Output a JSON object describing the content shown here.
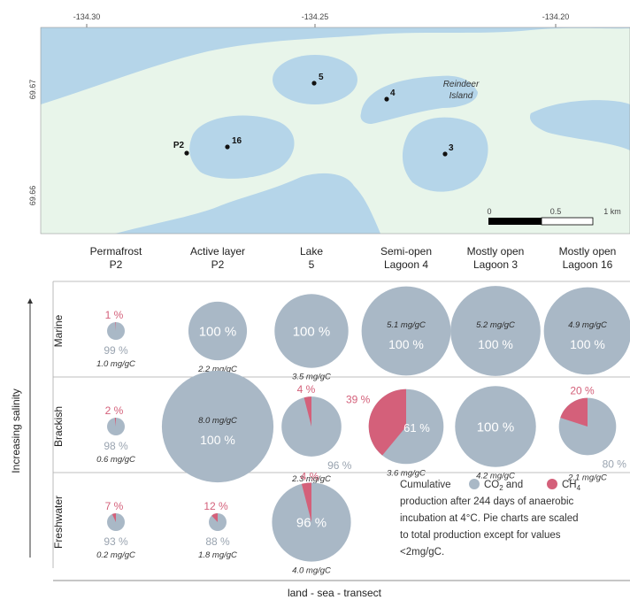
{
  "map": {
    "lon_ticks": [
      "-134.30",
      "-134.25",
      "-134.20"
    ],
    "lat_ticks": [
      "69.67",
      "69.66"
    ],
    "island_label": [
      "Reindeer",
      "Island"
    ],
    "sites": [
      "P2",
      "16",
      "5",
      "4",
      "3"
    ],
    "scale_labels": [
      "0",
      "0.5",
      "1 km"
    ]
  },
  "chart_data": {
    "type": "pie",
    "columns": [
      [
        "Permafrost",
        "P2"
      ],
      [
        "Active layer",
        "P2"
      ],
      [
        "Lake",
        "5"
      ],
      [
        "Semi-open",
        "Lagoon 4"
      ],
      [
        "Mostly open",
        "Lagoon 3"
      ],
      [
        "Mostly open",
        "Lagoon 16"
      ]
    ],
    "rows": [
      "Marine",
      "Brackish",
      "Freshwater"
    ],
    "y_axis_label": "Increasing salinity",
    "x_axis_label": "land - sea - transect",
    "cells": [
      {
        "row": 0,
        "col": 0,
        "total": 1.0,
        "total_label": "1.0 mg/gC",
        "co2": 99,
        "ch4": 1,
        "co2_label": "99 %",
        "ch4_label": "1 %",
        "style": "small"
      },
      {
        "row": 0,
        "col": 1,
        "total": 2.2,
        "total_label": "2.2 mg/gC",
        "co2": 100,
        "ch4": 0,
        "co2_label": "100 %",
        "ch4_label": "",
        "style": "inner"
      },
      {
        "row": 0,
        "col": 2,
        "total": 3.5,
        "total_label": "3.5 mg/gC",
        "co2": 100,
        "ch4": 0,
        "co2_label": "100 %",
        "ch4_label": "",
        "style": "inner"
      },
      {
        "row": 0,
        "col": 3,
        "total": 5.1,
        "total_label": "5.1 mg/gC",
        "co2": 100,
        "ch4": 0,
        "co2_label": "100 %",
        "ch4_label": "",
        "style": "big"
      },
      {
        "row": 0,
        "col": 4,
        "total": 5.2,
        "total_label": "5.2 mg/gC",
        "co2": 100,
        "ch4": 0,
        "co2_label": "100 %",
        "ch4_label": "",
        "style": "big"
      },
      {
        "row": 0,
        "col": 5,
        "total": 4.9,
        "total_label": "4.9 mg/gC",
        "co2": 100,
        "ch4": 0,
        "co2_label": "100 %",
        "ch4_label": "",
        "style": "big"
      },
      {
        "row": 1,
        "col": 0,
        "total": 0.6,
        "total_label": "0.6 mg/gC",
        "co2": 98,
        "ch4": 2,
        "co2_label": "98 %",
        "ch4_label": "2 %",
        "style": "small"
      },
      {
        "row": 1,
        "col": 1,
        "total": 8.0,
        "total_label": "8.0 mg/gC",
        "co2": 100,
        "ch4": 0,
        "co2_label": "100 %",
        "ch4_label": "",
        "style": "big"
      },
      {
        "row": 1,
        "col": 2,
        "total": 2.3,
        "total_label": "2.3 mg/gC",
        "co2": 96,
        "ch4": 4,
        "co2_label": "96 %",
        "ch4_label": "4 %",
        "style": "outside"
      },
      {
        "row": 1,
        "col": 3,
        "total": 3.6,
        "total_label": "3.6 mg/gC",
        "co2": 61,
        "ch4": 39,
        "co2_label": "61 %",
        "ch4_label": "39 %",
        "style": "split"
      },
      {
        "row": 1,
        "col": 4,
        "total": 4.2,
        "total_label": "4.2 mg/gC",
        "co2": 100,
        "ch4": 0,
        "co2_label": "100 %",
        "ch4_label": "",
        "style": "inner"
      },
      {
        "row": 1,
        "col": 5,
        "total": 2.1,
        "total_label": "2.1 mg/gC",
        "co2": 80,
        "ch4": 20,
        "co2_label": "80 %",
        "ch4_label": "20 %",
        "style": "outside"
      },
      {
        "row": 2,
        "col": 0,
        "total": 0.2,
        "total_label": "0.2 mg/gC",
        "co2": 93,
        "ch4": 7,
        "co2_label": "93 %",
        "ch4_label": "7 %",
        "style": "small"
      },
      {
        "row": 2,
        "col": 1,
        "total": 1.8,
        "total_label": "1.8 mg/gC",
        "co2": 88,
        "ch4": 12,
        "co2_label": "88 %",
        "ch4_label": "12 %",
        "style": "small"
      },
      {
        "row": 2,
        "col": 2,
        "total": 4.0,
        "total_label": "4.0 mg/gC",
        "co2": 96,
        "ch4": 4,
        "co2_label": "96 %",
        "ch4_label": "4 %",
        "style": "inner"
      }
    ],
    "legend": {
      "lines": [
        "production after 244 days of anaerobic",
        "incubation at 4°C. Pie charts are scaled",
        "to total production except for values",
        "<2mg/gC."
      ],
      "prefix": "Cumulative",
      "co2_name": "CO",
      "co2_sub": "2",
      "and_word": "and",
      "ch4_name": "CH",
      "ch4_sub": "4"
    },
    "colors": {
      "co2": "#a9b8c6",
      "ch4": "#d4607a",
      "water": "#b5d5e9",
      "land": "#e8f5ea"
    }
  }
}
